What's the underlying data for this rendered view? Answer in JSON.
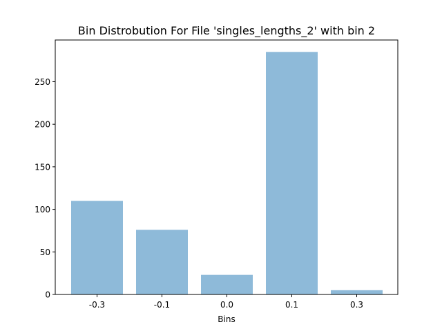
{
  "chart_data": {
    "type": "bar",
    "title": "Bin Distrobution For File 'singles_lengths_2' with bin 2",
    "xlabel": "Bins",
    "ylabel": "",
    "categories": [
      "-0.3",
      "-0.1",
      "0.0",
      "0.1",
      "0.3"
    ],
    "values": [
      110,
      76,
      23,
      285,
      5
    ],
    "ylim": [
      0,
      299
    ],
    "yticks": [
      "0",
      "50",
      "100",
      "150",
      "200",
      "250"
    ],
    "grid": false,
    "legend": "none",
    "bar_color": "#8ebad9"
  }
}
